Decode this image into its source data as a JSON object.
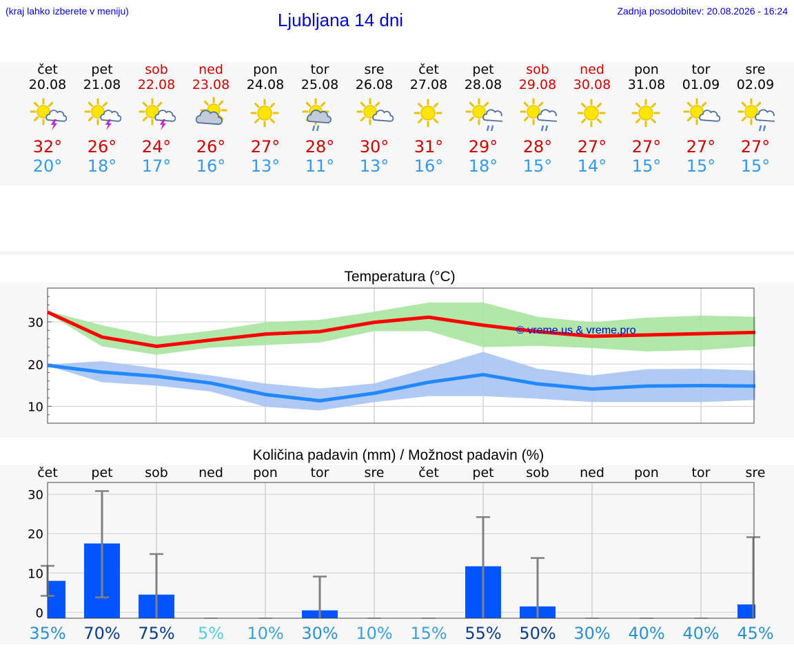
{
  "header": {
    "hint": "(kraj lahko izberete v meniju)",
    "title": "Ljubljana 14 dni",
    "updated": "Zadnja posodobitev: 20.08.2026 - 16:24"
  },
  "colors": {
    "link": "#0000cc",
    "weekend": "#cc0000",
    "max_line": "#ff0000",
    "max_band": "#a8e6a0",
    "min_line": "#2288ff",
    "min_band": "#a9c4f3",
    "bar": "#0055ff",
    "whisker": "#808080"
  },
  "days": [
    {
      "name": "čet",
      "date": "20.08",
      "weekend": false,
      "icon": "sun-thunderstorm-icon",
      "icon_type": "thunder",
      "tmax": "32°",
      "tmin": "20°"
    },
    {
      "name": "pet",
      "date": "21.08",
      "weekend": false,
      "icon": "sun-thunderstorm-icon",
      "icon_type": "thunder",
      "tmax": "26°",
      "tmin": "18°"
    },
    {
      "name": "sob",
      "date": "22.08",
      "weekend": true,
      "icon": "sun-thunderstorm-icon",
      "icon_type": "thunder",
      "tmax": "24°",
      "tmin": "17°"
    },
    {
      "name": "ned",
      "date": "23.08",
      "weekend": true,
      "icon": "sun-behind-cloud-icon",
      "icon_type": "cloudy",
      "tmax": "26°",
      "tmin": "16°"
    },
    {
      "name": "pon",
      "date": "24.08",
      "weekend": false,
      "icon": "sun-icon",
      "icon_type": "sun",
      "tmax": "27°",
      "tmin": "13°"
    },
    {
      "name": "tor",
      "date": "25.08",
      "weekend": false,
      "icon": "sun-rain-icon",
      "icon_type": "rain-big",
      "tmax": "28°",
      "tmin": "11°"
    },
    {
      "name": "sre",
      "date": "26.08",
      "weekend": false,
      "icon": "sun-small-cloud-icon",
      "icon_type": "partly",
      "tmax": "30°",
      "tmin": "13°"
    },
    {
      "name": "čet",
      "date": "27.08",
      "weekend": false,
      "icon": "sun-icon",
      "icon_type": "sun",
      "tmax": "31°",
      "tmin": "16°"
    },
    {
      "name": "pet",
      "date": "28.08",
      "weekend": false,
      "icon": "sun-rain-icon",
      "icon_type": "rain",
      "tmax": "29°",
      "tmin": "18°"
    },
    {
      "name": "sob",
      "date": "29.08",
      "weekend": true,
      "icon": "sun-rain-icon",
      "icon_type": "rain",
      "tmax": "28°",
      "tmin": "15°"
    },
    {
      "name": "ned",
      "date": "30.08",
      "weekend": true,
      "icon": "sun-icon",
      "icon_type": "sun",
      "tmax": "27°",
      "tmin": "14°"
    },
    {
      "name": "pon",
      "date": "31.08",
      "weekend": false,
      "icon": "sun-icon",
      "icon_type": "sun",
      "tmax": "27°",
      "tmin": "15°"
    },
    {
      "name": "tor",
      "date": "01.09",
      "weekend": false,
      "icon": "sun-small-cloud-icon",
      "icon_type": "partly",
      "tmax": "27°",
      "tmin": "15°"
    },
    {
      "name": "sre",
      "date": "02.09",
      "weekend": false,
      "icon": "sun-rain-icon",
      "icon_type": "rain",
      "tmax": "27°",
      "tmin": "15°"
    }
  ],
  "chart_data": [
    {
      "type": "line",
      "title": "Temperatura (°C)",
      "watermark": "© vreme.us & vreme.pro",
      "ylim": [
        6,
        38
      ],
      "yticks": [
        10,
        20,
        30
      ],
      "grid": true,
      "series": [
        {
          "role": "max",
          "values": [
            32.3,
            26.4,
            24.2,
            25.7,
            27.1,
            27.7,
            29.9,
            31.1,
            29.2,
            27.7,
            26.6,
            26.9,
            27.2,
            27.5
          ],
          "band_low": [
            32.0,
            24.2,
            22.2,
            23.9,
            24.5,
            25.1,
            27.8,
            27.8,
            24.0,
            24.3,
            23.8,
            23.0,
            23.3,
            24.2
          ],
          "band_high": [
            32.6,
            29.2,
            26.5,
            27.9,
            29.9,
            30.5,
            32.4,
            34.6,
            34.6,
            31.2,
            29.9,
            31.0,
            31.5,
            31.2
          ]
        },
        {
          "role": "min",
          "values": [
            19.7,
            18.1,
            17.1,
            15.5,
            12.8,
            11.3,
            13.1,
            15.7,
            17.5,
            15.3,
            14.1,
            14.8,
            14.9,
            14.8
          ],
          "band_low": [
            19.6,
            15.7,
            14.9,
            13.5,
            9.9,
            9.0,
            11.0,
            12.4,
            12.4,
            11.8,
            11.0,
            11.0,
            11.0,
            11.5
          ],
          "band_high": [
            19.9,
            20.7,
            19.0,
            17.3,
            15.4,
            14.2,
            15.4,
            19.1,
            22.9,
            18.9,
            17.3,
            18.8,
            18.9,
            18.5
          ]
        }
      ]
    },
    {
      "type": "bar",
      "title": "Količina padavin (mm) / Možnost padavin (%)",
      "categories": [
        "čet",
        "pet",
        "sob",
        "ned",
        "pon",
        "tor",
        "sre",
        "čet",
        "pet",
        "sob",
        "ned",
        "pon",
        "tor",
        "sre"
      ],
      "values": [
        8.0,
        17.5,
        4.5,
        0,
        0,
        0.5,
        0,
        0,
        11.7,
        1.5,
        0,
        0,
        0,
        2.0
      ],
      "error_high": [
        11.8,
        30.8,
        14.8,
        0,
        0,
        9.1,
        0,
        0,
        24.2,
        13.8,
        0,
        0,
        0,
        19.1
      ],
      "error_low": [
        4.2,
        3.8,
        0,
        0,
        0,
        0,
        0,
        0,
        0,
        0,
        0,
        0,
        0,
        0
      ],
      "probability": [
        "35%",
        "70%",
        "75%",
        "5%",
        "10%",
        "30%",
        "10%",
        "15%",
        "55%",
        "50%",
        "30%",
        "40%",
        "40%",
        "45%"
      ],
      "probability_values": [
        35,
        70,
        75,
        5,
        10,
        30,
        10,
        15,
        55,
        50,
        30,
        40,
        40,
        45
      ],
      "ylim": [
        -1.5,
        33
      ],
      "yticks": [
        0,
        10,
        20,
        30
      ],
      "grid": true
    }
  ]
}
